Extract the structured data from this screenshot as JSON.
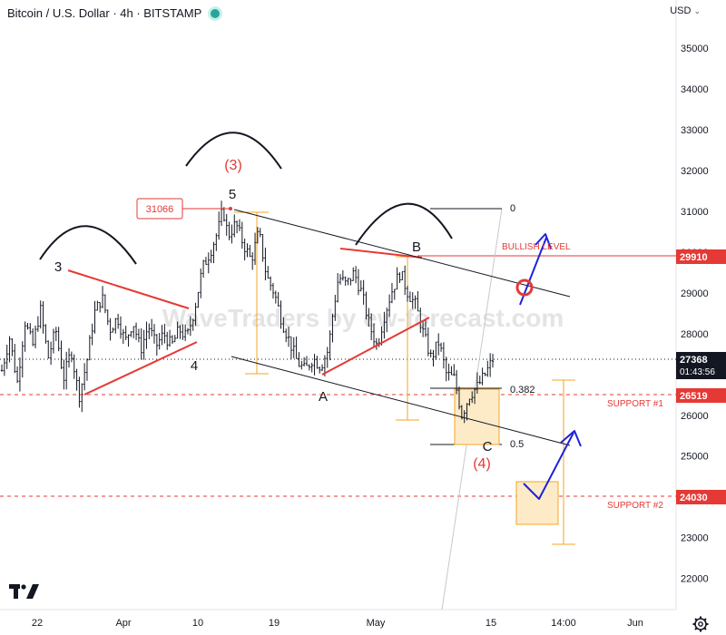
{
  "header": {
    "title": "Bitcoin / U.S. Dollar · 4h · BITSTAMP",
    "currency": "USD"
  },
  "watermark": "WaveTraders by ew-forecast.com",
  "chart_data": {
    "type": "candlestick",
    "symbol": "Bitcoin / U.S. Dollar",
    "interval": "4h",
    "exchange": "BITSTAMP",
    "ylim": [
      21500,
      35800
    ],
    "yticks": [
      22000,
      23000,
      24000,
      25000,
      26000,
      27000,
      28000,
      29000,
      30000,
      31000,
      32000,
      33000,
      34000,
      35000
    ],
    "xticks": [
      "22",
      "Apr",
      "10",
      "19",
      "May",
      "15",
      "14:00",
      "Jun"
    ],
    "price_path": [
      {
        "t": 0,
        "p": 27100
      },
      {
        "t": 3,
        "p": 27900
      },
      {
        "t": 6,
        "p": 26800
      },
      {
        "t": 9,
        "p": 28300
      },
      {
        "t": 12,
        "p": 27700
      },
      {
        "t": 15,
        "p": 28600
      },
      {
        "t": 18,
        "p": 27400
      },
      {
        "t": 21,
        "p": 28100
      },
      {
        "t": 24,
        "p": 26900
      },
      {
        "t": 27,
        "p": 27600
      },
      {
        "t": 30,
        "p": 26450
      },
      {
        "t": 33,
        "p": 27300
      },
      {
        "t": 36,
        "p": 28500
      },
      {
        "t": 39,
        "p": 28900
      },
      {
        "t": 42,
        "p": 28100
      },
      {
        "t": 45,
        "p": 28400
      },
      {
        "t": 48,
        "p": 27800
      },
      {
        "t": 51,
        "p": 28300
      },
      {
        "t": 54,
        "p": 27600
      },
      {
        "t": 57,
        "p": 28200
      },
      {
        "t": 60,
        "p": 27700
      },
      {
        "t": 63,
        "p": 28000
      },
      {
        "t": 66,
        "p": 27700
      },
      {
        "t": 69,
        "p": 28100
      },
      {
        "t": 72,
        "p": 27900
      },
      {
        "t": 75,
        "p": 28600
      },
      {
        "t": 78,
        "p": 29600
      },
      {
        "t": 81,
        "p": 30000
      },
      {
        "t": 84,
        "p": 30500
      },
      {
        "t": 86,
        "p": 31066
      },
      {
        "t": 88,
        "p": 30400
      },
      {
        "t": 91,
        "p": 30700
      },
      {
        "t": 94,
        "p": 30200
      },
      {
        "t": 97,
        "p": 29800
      },
      {
        "t": 100,
        "p": 30500
      },
      {
        "t": 103,
        "p": 29400
      },
      {
        "t": 106,
        "p": 29000
      },
      {
        "t": 109,
        "p": 28300
      },
      {
        "t": 112,
        "p": 27800
      },
      {
        "t": 115,
        "p": 27300
      },
      {
        "t": 118,
        "p": 27100
      },
      {
        "t": 121,
        "p": 27400
      },
      {
        "t": 124,
        "p": 27200
      },
      {
        "t": 127,
        "p": 27600
      },
      {
        "t": 129,
        "p": 28600
      },
      {
        "t": 131,
        "p": 29400
      },
      {
        "t": 134,
        "p": 29200
      },
      {
        "t": 137,
        "p": 29500
      },
      {
        "t": 140,
        "p": 29000
      },
      {
        "t": 143,
        "p": 28200
      },
      {
        "t": 146,
        "p": 27700
      },
      {
        "t": 149,
        "p": 28500
      },
      {
        "t": 152,
        "p": 29100
      },
      {
        "t": 155,
        "p": 29500
      },
      {
        "t": 158,
        "p": 29000
      },
      {
        "t": 161,
        "p": 28700
      },
      {
        "t": 164,
        "p": 28000
      },
      {
        "t": 167,
        "p": 27400
      },
      {
        "t": 170,
        "p": 27800
      },
      {
        "t": 173,
        "p": 27000
      },
      {
        "t": 176,
        "p": 26900
      },
      {
        "t": 179,
        "p": 26000
      },
      {
        "t": 182,
        "p": 26500
      },
      {
        "t": 185,
        "p": 26700
      },
      {
        "t": 188,
        "p": 27000
      },
      {
        "t": 191,
        "p": 27368
      }
    ],
    "price_levels": [
      {
        "name": "bullish-level",
        "label": "BULLISH LEVEL",
        "value": 29910,
        "tag": "29910",
        "color": "#e53935",
        "style": "solid"
      },
      {
        "name": "support-1",
        "label": "SUPPORT #1",
        "value": 26519,
        "tag": "26519",
        "color": "#e53935",
        "style": "dashed"
      },
      {
        "name": "support-2",
        "label": "SUPPORT #2",
        "value": 24030,
        "tag": "24030",
        "color": "#e53935",
        "style": "dashed"
      }
    ],
    "last_price": {
      "value": 27368,
      "tag": "27368",
      "countdown": "01:43:56",
      "color": "#131722"
    },
    "high_marker": {
      "label": "31066",
      "value": 31066
    },
    "fib_levels": [
      {
        "label": "0",
        "value": 31066
      },
      {
        "label": "0.382",
        "value": 26620
      },
      {
        "label": "0.5",
        "value": 25260
      }
    ],
    "wave_labels": [
      {
        "text": "3",
        "color": "#131722"
      },
      {
        "text": "4",
        "color": "#131722"
      },
      {
        "text": "5",
        "color": "#131722"
      },
      {
        "text": "(3)",
        "color": "#e53935"
      },
      {
        "text": "A",
        "color": "#131722"
      },
      {
        "text": "B",
        "color": "#131722"
      },
      {
        "text": "C",
        "color": "#131722"
      },
      {
        "text": "(4)",
        "color": "#e53935"
      }
    ],
    "colors": {
      "candles": "#131722",
      "trendlines": "#e53935",
      "channel": "#131722",
      "measure": "#f5a623",
      "target_box_fill": "#fdebc8",
      "arrows": "#1e22d9",
      "arcs": "#131722"
    }
  }
}
